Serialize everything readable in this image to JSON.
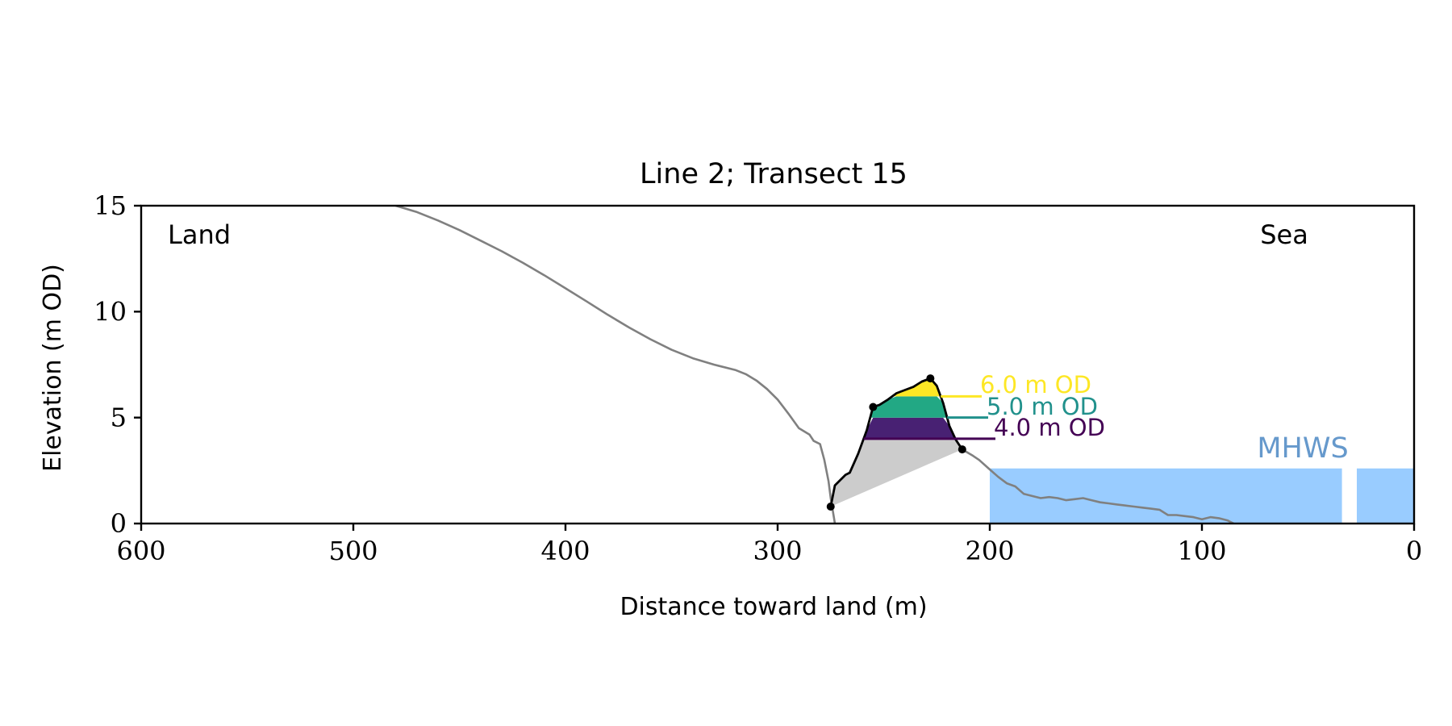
{
  "chart_data": {
    "type": "line",
    "title": "Line 2; Transect 15",
    "xlabel": "Distance toward land (m)",
    "ylabel": "Elevation (m OD)",
    "xlim": [
      600,
      0
    ],
    "ylim": [
      0,
      15
    ],
    "x_ticks": [
      "600",
      "500",
      "400",
      "300",
      "200",
      "100",
      "0"
    ],
    "y_ticks": [
      "0",
      "5",
      "10",
      "15"
    ],
    "grid": false,
    "annotations": {
      "land": "Land",
      "sea": "Sea",
      "mhws": "MHWS"
    },
    "mhws_level": 2.6,
    "mhws_segments": [
      [
        200,
        34
      ],
      [
        27,
        0
      ]
    ],
    "levels": [
      {
        "label": "6.0 m OD",
        "value": 6.0,
        "color": "#fde725"
      },
      {
        "label": "5.0 m OD",
        "value": 5.0,
        "color": "#21918c"
      },
      {
        "label": "4.0 m OD",
        "value": 4.0,
        "color": "#440154"
      }
    ],
    "colors": {
      "profile": "#808080",
      "dune": "#000000",
      "toe_fill": "#cccccc",
      "band_upper": "#fde725",
      "band_middle": "#22a884",
      "band_lower": "#482173",
      "mhws": "#99ccff",
      "mhws_label": "#6699cc"
    },
    "land_profile": [
      [
        480,
        15.0
      ],
      [
        470,
        14.7
      ],
      [
        460,
        14.3
      ],
      [
        450,
        13.85
      ],
      [
        440,
        13.35
      ],
      [
        430,
        12.85
      ],
      [
        420,
        12.3
      ],
      [
        410,
        11.72
      ],
      [
        400,
        11.1
      ],
      [
        390,
        10.48
      ],
      [
        380,
        9.85
      ],
      [
        370,
        9.25
      ],
      [
        360,
        8.7
      ],
      [
        350,
        8.2
      ],
      [
        340,
        7.8
      ],
      [
        330,
        7.5
      ],
      [
        320,
        7.25
      ],
      [
        315,
        7.05
      ],
      [
        310,
        6.75
      ],
      [
        305,
        6.35
      ],
      [
        300,
        5.85
      ],
      [
        295,
        5.2
      ],
      [
        290,
        4.5
      ],
      [
        285,
        4.2
      ],
      [
        283,
        3.9
      ],
      [
        280,
        3.75
      ],
      [
        278,
        3.0
      ],
      [
        276,
        2.0
      ],
      [
        275,
        1.2
      ],
      [
        274,
        0.6
      ],
      [
        273,
        0.0
      ]
    ],
    "dune_profile": [
      [
        275,
        0.8
      ],
      [
        273,
        1.8
      ],
      [
        268,
        2.3
      ],
      [
        266,
        2.4
      ],
      [
        262,
        3.3
      ],
      [
        258,
        4.4
      ],
      [
        255,
        5.5
      ],
      [
        252,
        5.6
      ],
      [
        248,
        5.85
      ],
      [
        244,
        6.15
      ],
      [
        240,
        6.3
      ],
      [
        236,
        6.45
      ],
      [
        232,
        6.7
      ],
      [
        228,
        6.85
      ],
      [
        225,
        6.5
      ],
      [
        222,
        5.7
      ],
      [
        219,
        4.6
      ],
      [
        216,
        3.95
      ],
      [
        213,
        3.5
      ]
    ],
    "dune_points": [
      [
        275,
        0.8
      ],
      [
        255,
        5.5
      ],
      [
        228,
        6.85
      ],
      [
        213,
        3.5
      ]
    ],
    "seaward_profile": [
      [
        213,
        3.5
      ],
      [
        208,
        3.2
      ],
      [
        205,
        3.0
      ],
      [
        200,
        2.55
      ],
      [
        196,
        2.2
      ],
      [
        192,
        1.9
      ],
      [
        188,
        1.75
      ],
      [
        184,
        1.4
      ],
      [
        180,
        1.3
      ],
      [
        176,
        1.2
      ],
      [
        172,
        1.25
      ],
      [
        168,
        1.2
      ],
      [
        164,
        1.1
      ],
      [
        160,
        1.15
      ],
      [
        156,
        1.2
      ],
      [
        152,
        1.1
      ],
      [
        148,
        1.0
      ],
      [
        144,
        0.95
      ],
      [
        140,
        0.9
      ],
      [
        136,
        0.85
      ],
      [
        132,
        0.8
      ],
      [
        128,
        0.75
      ],
      [
        124,
        0.7
      ],
      [
        120,
        0.65
      ],
      [
        116,
        0.4
      ],
      [
        112,
        0.4
      ],
      [
        108,
        0.35
      ],
      [
        104,
        0.3
      ],
      [
        100,
        0.2
      ],
      [
        96,
        0.3
      ],
      [
        92,
        0.25
      ],
      [
        88,
        0.15
      ],
      [
        85,
        0.0
      ]
    ]
  }
}
